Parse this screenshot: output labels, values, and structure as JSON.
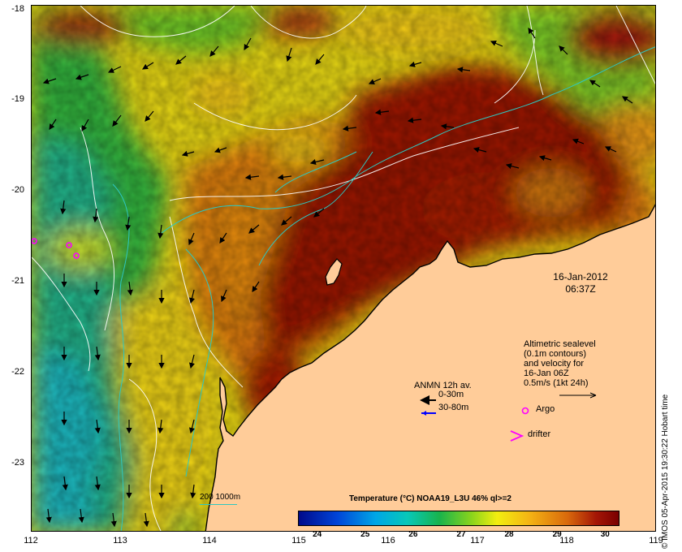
{
  "axes": {
    "lat_labels": [
      "-18",
      "-19",
      "-20",
      "-21",
      "-22",
      "-23"
    ],
    "lat_values": [
      -18,
      -19,
      -20,
      -21,
      -22,
      -23
    ],
    "lon_labels": [
      "112",
      "113",
      "114",
      "115",
      "116",
      "117",
      "118",
      "119"
    ],
    "lon_values": [
      112,
      113,
      114,
      115,
      116,
      117,
      118,
      119
    ],
    "lon_range": [
      112,
      119
    ],
    "lat_range": [
      -17.95,
      -23.75
    ]
  },
  "timestamp": {
    "date": "16-Jan-2012",
    "time": "06:37Z"
  },
  "altimetry": {
    "line1": "Altimetric sealevel",
    "line2": "(0.1m contours)",
    "line3": "and velocity for",
    "line4": "16-Jan 06Z",
    "line5": "0.5m/s (1kt 24h)"
  },
  "anmn": {
    "title": "ANMN 12h av.",
    "row1": "0-30m",
    "row2": "30-80m",
    "color1": "#000000",
    "color2": "#0000ff"
  },
  "argo_label": "Argo",
  "drifter_label": "drifter",
  "argo_color": "#ff00ff",
  "colorbar": {
    "title": "Temperature (°C) NOAA19_L3U 46% ql>=2",
    "ticks": [
      "24",
      "25",
      "26",
      "27",
      "28",
      "29",
      "30"
    ],
    "tick_values": [
      24,
      25,
      26,
      27,
      28,
      29,
      30
    ],
    "range": [
      23.6,
      30.3
    ]
  },
  "isobath_label": "200  1000m",
  "isobath_color": "#2ec7c0",
  "land_color": "#ffcc99",
  "credit": "© IMOS 05-Apr-2015 19:30:22 Hobart time"
}
